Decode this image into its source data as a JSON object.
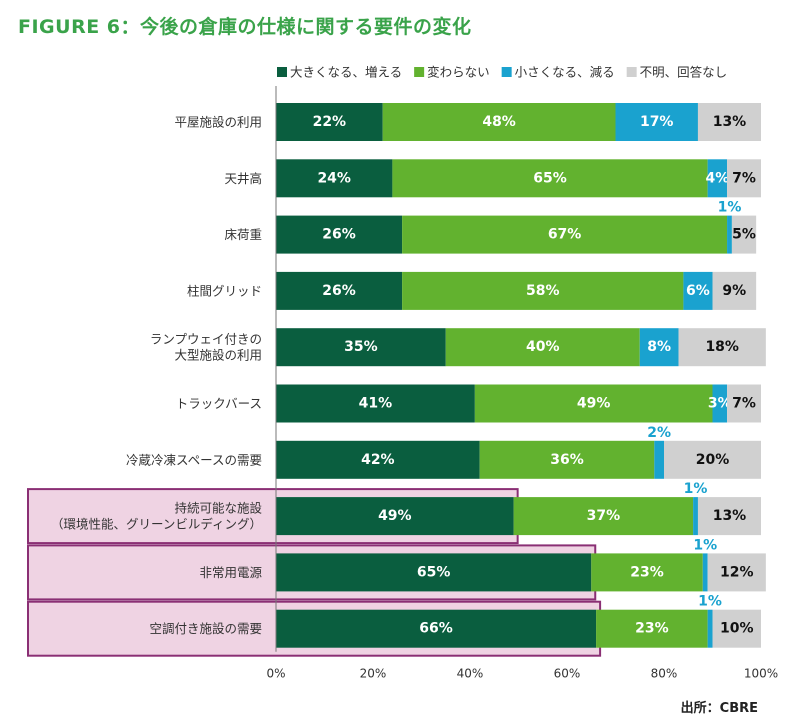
{
  "title": "FIGURE 6：今後の倉庫の仕様に関する要件の変化",
  "source": "出所：CBRE",
  "colors": {
    "increase": "#0a5e3f",
    "unchanged": "#62b22f",
    "decrease": "#1aa2cf",
    "unknown": "#d0d0d0",
    "highlight_fill": "#efd3e3",
    "highlight_border": "#8a2f74",
    "title": "#3aa34a"
  },
  "chart_data": {
    "type": "bar",
    "orientation": "horizontal-stacked",
    "xlim": [
      0,
      100
    ],
    "x_ticks": [
      "0%",
      "20%",
      "40%",
      "60%",
      "80%",
      "100%"
    ],
    "legend_position": "top-right",
    "grid": false,
    "categories": [
      "平屋施設の利用",
      "天井高",
      "床荷重",
      "柱間グリッド",
      "ランプウェイ付きの\n大型施設の利用",
      "トラックバース",
      "冷蔵冷凍スペースの需要",
      "持続可能な施設\n（環境性能、グリーンビルディング）",
      "非常用電源",
      "空調付き施設の需要"
    ],
    "highlighted": [
      false,
      false,
      false,
      false,
      false,
      false,
      false,
      true,
      true,
      true
    ],
    "series": [
      {
        "name": "大きくなる、増える",
        "color_key": "increase",
        "label_color": "#ffffff",
        "values": [
          22,
          24,
          26,
          26,
          35,
          41,
          42,
          49,
          65,
          66
        ]
      },
      {
        "name": "変わらない",
        "color_key": "unchanged",
        "label_color": "#ffffff",
        "values": [
          48,
          65,
          67,
          58,
          40,
          49,
          36,
          37,
          23,
          23
        ]
      },
      {
        "name": "小さくなる、減る",
        "color_key": "decrease",
        "label_color": "#ffffff",
        "values": [
          17,
          4,
          1,
          6,
          8,
          3,
          2,
          1,
          1,
          1
        ]
      },
      {
        "name": "不明、回答なし",
        "color_key": "unknown",
        "label_color": "#111111",
        "values": [
          13,
          7,
          5,
          9,
          18,
          7,
          20,
          13,
          12,
          10
        ]
      }
    ]
  }
}
